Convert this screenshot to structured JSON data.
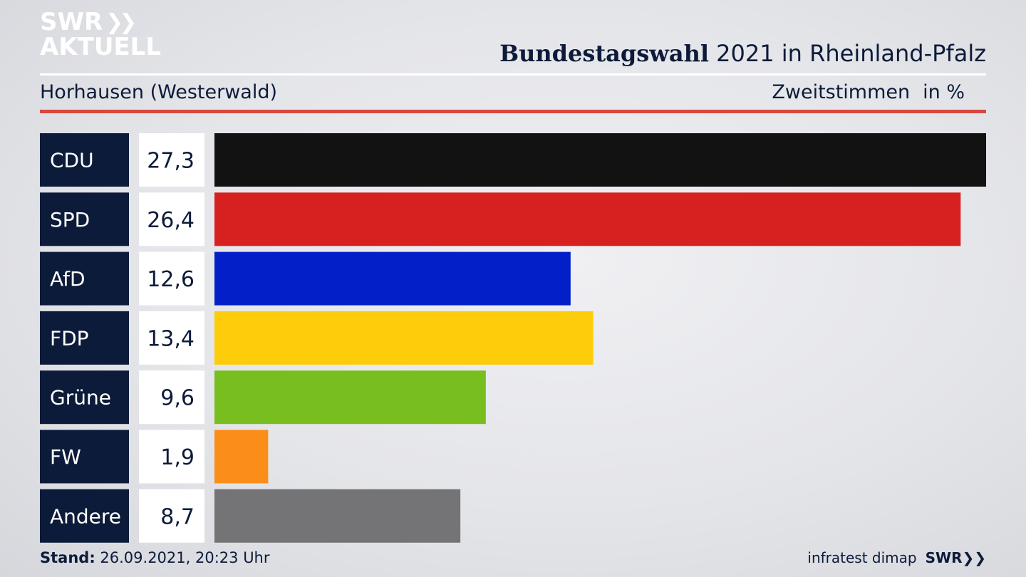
{
  "header": {
    "logo_line1": "SWR",
    "logo_line2": "AKTUELL",
    "title_bold": "Bundestagswahl",
    "title_rest": "2021 in Rheinland-Pfalz",
    "subtitle": "Horhausen (Westerwald)",
    "measure": "Zweitstimmen",
    "unit": "in %"
  },
  "footer": {
    "stand_label": "Stand:",
    "stand_value": "26.09.2021, 20:23 Uhr",
    "source": "infratest dimap",
    "brand": "SWR"
  },
  "chart_data": {
    "type": "bar",
    "orientation": "horizontal",
    "title": "Bundestagswahl 2021 in Rheinland-Pfalz",
    "subtitle": "Horhausen (Westerwald)",
    "xlabel": "Zweitstimmen in %",
    "categories": [
      "CDU",
      "SPD",
      "AfD",
      "FDP",
      "Grüne",
      "FW",
      "Andere"
    ],
    "values": [
      27.3,
      26.4,
      12.6,
      13.4,
      9.6,
      1.9,
      8.7
    ],
    "value_labels": [
      "27,3",
      "26,4",
      "12,6",
      "13,4",
      "9,6",
      "1,9",
      "8,7"
    ],
    "colors": [
      "#121212",
      "#d72121",
      "#0320c8",
      "#fdcc0a",
      "#78be1f",
      "#fb8e19",
      "#747476"
    ],
    "label_box_color": "#0d1b3a",
    "value_box_color": "#ffffff",
    "grid": false,
    "legend": "none"
  }
}
